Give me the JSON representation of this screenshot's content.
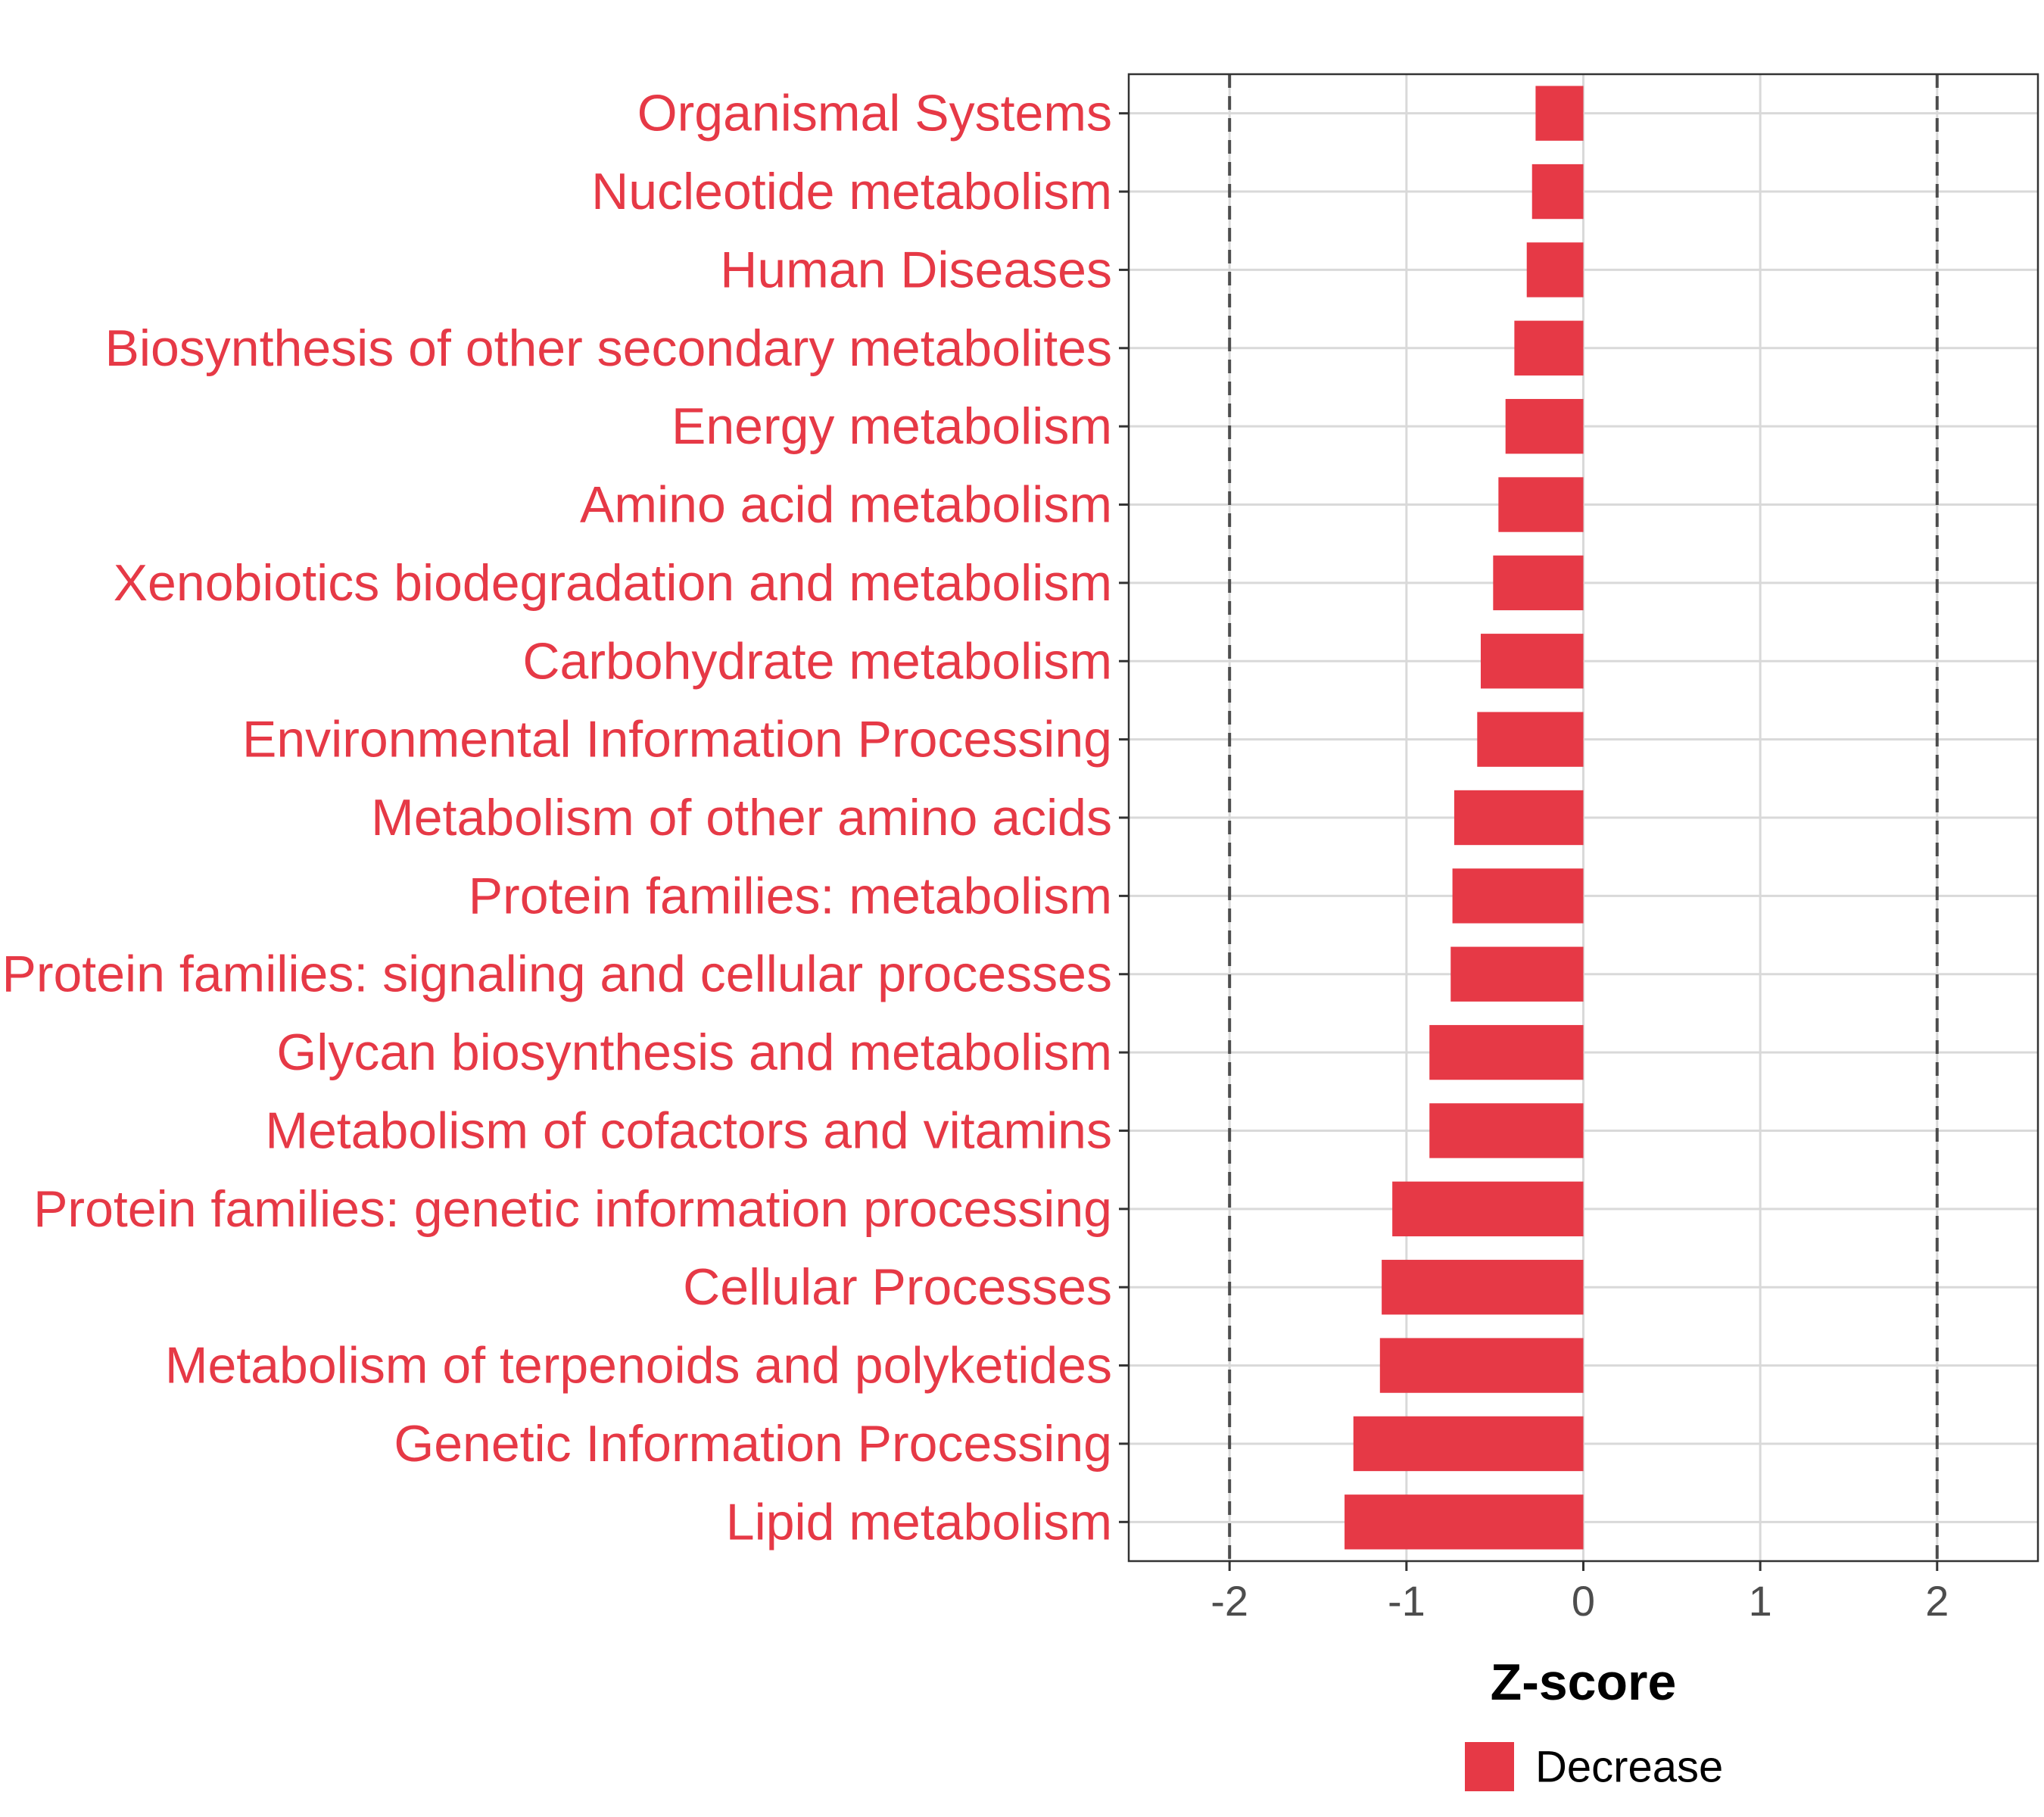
{
  "chart_data": {
    "type": "bar",
    "orientation": "horizontal",
    "categories": [
      "Organismal Systems",
      "Nucleotide metabolism",
      "Human Diseases",
      "Biosynthesis of other secondary metabolites",
      "Energy metabolism",
      "Amino acid metabolism",
      "Xenobiotics biodegradation and metabolism",
      "Carbohydrate metabolism",
      "Environmental Information Processing",
      "Metabolism of other amino acids",
      "Protein families: metabolism",
      "Protein families: signaling and cellular processes",
      "Glycan biosynthesis and metabolism",
      "Metabolism of cofactors and vitamins",
      "Protein families: genetic information processing",
      "Cellular Processes",
      "Metabolism of terpenoids and polyketides",
      "Genetic Information Processing",
      "Lipid metabolism"
    ],
    "values": [
      -0.27,
      -0.29,
      -0.32,
      -0.39,
      -0.44,
      -0.48,
      -0.51,
      -0.58,
      -0.6,
      -0.73,
      -0.74,
      -0.75,
      -0.87,
      -0.87,
      -1.08,
      -1.14,
      -1.15,
      -1.3,
      -1.35
    ],
    "series": [
      {
        "name": "Decrease",
        "color": "#e63946"
      }
    ],
    "xlabel": "Z-score",
    "xlim": [
      -2.57,
      2.57
    ],
    "xticks": [
      -2,
      -1,
      0,
      1,
      2
    ],
    "reference_lines": [
      -2,
      2
    ],
    "grid": true,
    "legend_position": "bottom"
  },
  "colors": {
    "bar": "#e63946",
    "label": "#e63946",
    "grid": "#d9d9d9",
    "refline": "#4d4d4d"
  }
}
